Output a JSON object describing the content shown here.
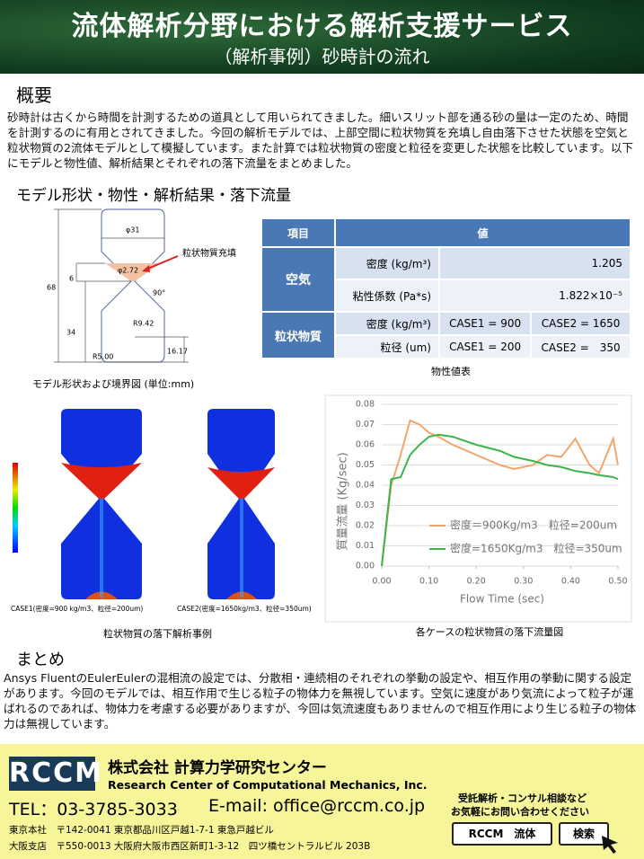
{
  "header": {
    "title": "流体解析分野における解析支援サービス",
    "subtitle": "（解析事例）砂時計の流れ"
  },
  "overview": {
    "heading": "概要",
    "text": "砂時計は古くから時間を計測するための道具として用いられてきました。細いスリット部を通る砂の量は一定のため、時間を計測するのに有用とされてきました。今回の解析モデルでは、上部空間に粒状物質を充填し自由落下させた状態を空気と粒状物質の2流体モデルとして模擬しています。また計算では粒状物質の密度と粒径を変更した状態を比較しています。以下にモデルと物性値、解析結果とそれぞれの落下流量をまとめました。"
  },
  "section": {
    "heading": "モデル形状・物性・解析結果・落下流量"
  },
  "model": {
    "labels": [
      "φ31",
      "φ2.72",
      "粒状物質充填",
      "68",
      "6",
      "90°",
      "R9.42",
      "34",
      "16.17",
      "R5.00"
    ],
    "caption": "モデル形状および境界図 (単位:mm)"
  },
  "table": {
    "header": [
      "項目",
      "値"
    ],
    "air": "空気",
    "air_rows": [
      [
        "密度 (kg/m³)",
        "1.205"
      ],
      [
        "粘性係数 (Pa*s)",
        "1.822×10⁻⁵"
      ]
    ],
    "particle": "粒状物質",
    "particle_rows": [
      [
        "密度 (kg/m³)",
        "CASE1 = 900",
        "CASE2 = 1650"
      ],
      [
        "粒径 (um)",
        "CASE1 = 200",
        "CASE2 =　350"
      ]
    ],
    "caption": "物性値表"
  },
  "simulation": {
    "case1": "CASE1(密度=900 kg/m3、粒径=200um)",
    "case2": "CASE2(密度=1650kg/m3、粒径=350um)",
    "caption": "粒状物質の落下解析事例"
  },
  "chart_data": {
    "type": "line",
    "ylabel": "質量流量 (Kg/sec)",
    "xlabel": "Flow Time (sec)",
    "caption": "各ケースの粒状物質の落下流量図",
    "x": [
      0,
      0.02,
      0.04,
      0.06,
      0.08,
      0.1,
      0.12,
      0.15,
      0.2,
      0.25,
      0.28,
      0.32,
      0.35,
      0.38,
      0.41,
      0.44,
      0.46,
      0.49,
      0.5
    ],
    "series": [
      {
        "name": "密度＝900Kg/m3　粒径=200um",
        "color": "#f4a56a",
        "values": [
          0,
          0.04,
          0.055,
          0.072,
          0.07,
          0.066,
          0.064,
          0.06,
          0.055,
          0.05,
          0.048,
          0.05,
          0.055,
          0.054,
          0.063,
          0.05,
          0.046,
          0.063,
          0.05
        ]
      },
      {
        "name": "密度=1650Kg/m3　粒径=350um",
        "color": "#3cb54a",
        "values": [
          0,
          0.043,
          0.044,
          0.055,
          0.06,
          0.064,
          0.065,
          0.064,
          0.06,
          0.057,
          0.054,
          0.052,
          0.05,
          0.049,
          0.047,
          0.046,
          0.045,
          0.044,
          0.043
        ]
      }
    ],
    "xlim": [
      0,
      0.5
    ],
    "ylim": [
      0,
      0.08
    ],
    "xticks": [
      {
        "value": 0,
        "label": "0.00"
      },
      {
        "value": 0.1,
        "label": "0.10"
      },
      {
        "value": 0.2,
        "label": "0.20"
      },
      {
        "value": 0.3,
        "label": "0.30"
      },
      {
        "value": 0.4,
        "label": "0.40"
      },
      {
        "value": 0.5,
        "label": "0.50"
      }
    ],
    "yticks": [
      {
        "value": 0,
        "label": "0.00"
      },
      {
        "value": 0.01,
        "label": "0.01"
      },
      {
        "value": 0.02,
        "label": "0.02"
      },
      {
        "value": 0.03,
        "label": "0.03"
      },
      {
        "value": 0.04,
        "label": "0.04"
      },
      {
        "value": 0.05,
        "label": "0.05"
      },
      {
        "value": 0.06,
        "label": "0.06"
      },
      {
        "value": 0.07,
        "label": "0.07"
      },
      {
        "value": 0.08,
        "label": "0.08"
      }
    ],
    "grid": true
  },
  "summary": {
    "heading": "まとめ",
    "text": "Ansys FluentのEulerEulerの混相流の設定では、分散相・連続相のそれぞれの挙動の設定や、相互作用の挙動に関する設定があります。今回のモデルでは、相互作用で生じる粒子の物体力を無視しています。空気に速度があり気流によって粒子が運ばれるのであれば、物体力を考慮する必要がありますが、今回は気流速度もありませんので相互作用により生じる粒子の物体力は無視しています。"
  },
  "footer": {
    "logo": "RCCM",
    "company": "株式会社 計算力学研究センター",
    "english": "Research Center of Computational Mechanics, Inc.",
    "tel": "TEL：03-3785-3033",
    "email": "E-mail: office@rccm.co.jp",
    "contact": [
      "受託解析・コンサル相談など",
      "お気軽にお問い合わせください"
    ],
    "addresses": [
      "東京本社　〒142-0041 東京都品川区戸越1-7-1 東急戸越ビル",
      "大阪支店　〒550-0013 大阪府大阪市西区新町1-3-12　四ツ橋セントラルビル 203B"
    ],
    "search_box": "RCCM　流体",
    "search_button": "検索"
  }
}
